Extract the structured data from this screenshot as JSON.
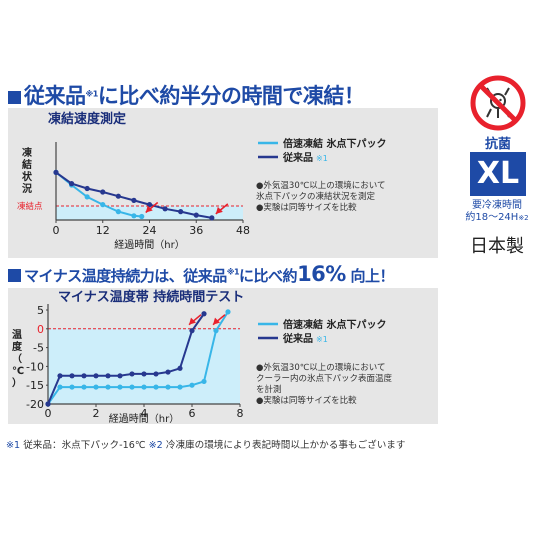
{
  "heading1": {
    "prefix": "従来品",
    "mark": "※1",
    "text": "に比べ約半分の時間で凍結！"
  },
  "heading2": {
    "prefix": "マイナス温度持続力は、従来品",
    "mark": "※1",
    "mid": "に比べ約",
    "highlight": "16%",
    "suffix": " 向上！"
  },
  "side": {
    "icon": "no-bacteria-icon",
    "badge_label": "抗菌",
    "size": "XL",
    "time_label_1": "要冷凍時間",
    "time_label_2": "約18～24H",
    "time_mark": "※2",
    "origin": "日本製"
  },
  "footnote": {
    "m1": "※1",
    "t1": " 従来品：氷点下パック-16℃  ",
    "m2": "※2",
    "t2": " 冷凍庫の環境により表記時間以上かかる事もございます"
  },
  "colors": {
    "new": "#38b6e8",
    "old": "#27388f",
    "accent": "#1e4aa6",
    "arrow": "#e8212c",
    "zone": "#cdeefa"
  },
  "chart_data": [
    {
      "type": "line",
      "title": "凍結速度測定",
      "xlabel": "経過時間（hr）",
      "ylabel": "凍結状況",
      "freeze_label": "凍結点",
      "xlim": [
        0,
        48
      ],
      "xticks": [
        0,
        12,
        24,
        36,
        48
      ],
      "ylim": [
        0,
        100
      ],
      "legend": [
        {
          "name": "倍速凍結 氷点下パック",
          "mark": ""
        },
        {
          "name": "従来品",
          "mark": "※1"
        }
      ],
      "notes": [
        "●外気温30℃以上の環境において",
        "氷点下パックの凍結状況を測定",
        "●実験は同等サイズを比較"
      ],
      "series": [
        {
          "x": [
            0,
            4,
            8,
            12,
            16,
            20,
            22
          ],
          "y": [
            68,
            50,
            33,
            22,
            12,
            6,
            5
          ]
        },
        {
          "x": [
            0,
            4,
            8,
            12,
            16,
            20,
            24,
            28,
            32,
            36,
            40
          ],
          "y": [
            68,
            52,
            45,
            40,
            34,
            28,
            22,
            16,
            12,
            7,
            3
          ]
        }
      ]
    },
    {
      "type": "line",
      "title": "マイナス温度帯 持続時間テスト",
      "xlabel": "経過時間（hr）",
      "ylabel": "温度（℃）",
      "xlim": [
        0,
        8
      ],
      "xticks": [
        0,
        2,
        4,
        6,
        8
      ],
      "ylim": [
        -20,
        5
      ],
      "yticks": [
        5,
        0,
        -5,
        -10,
        -15,
        -20
      ],
      "legend": [
        {
          "name": "倍速凍結 氷点下パック",
          "mark": ""
        },
        {
          "name": "従来品",
          "mark": "※1"
        }
      ],
      "notes": [
        "●外気温30℃以上の環境において",
        "クーラー内の氷点下パック表面温度",
        "を計測",
        "●実験は同等サイズを比較"
      ],
      "series": [
        {
          "x": [
            0,
            0.5,
            1,
            1.5,
            2,
            2.5,
            3,
            3.5,
            4,
            4.5,
            5,
            5.5,
            6,
            6.5,
            7,
            7.5
          ],
          "y": [
            -20,
            -15.5,
            -15.5,
            -15.5,
            -15.5,
            -15.5,
            -15.5,
            -15.5,
            -15.5,
            -15.5,
            -15.5,
            -15.5,
            -15,
            -14,
            -0.5,
            4.5
          ]
        },
        {
          "x": [
            0,
            0.5,
            1,
            1.5,
            2,
            2.5,
            3,
            3.5,
            4,
            4.5,
            5,
            5.5,
            6,
            6.5
          ],
          "y": [
            -20,
            -12.5,
            -12.5,
            -12.5,
            -12.5,
            -12.5,
            -12.5,
            -12,
            -12,
            -12,
            -11.5,
            -10.5,
            -0.5,
            4
          ]
        }
      ]
    }
  ]
}
